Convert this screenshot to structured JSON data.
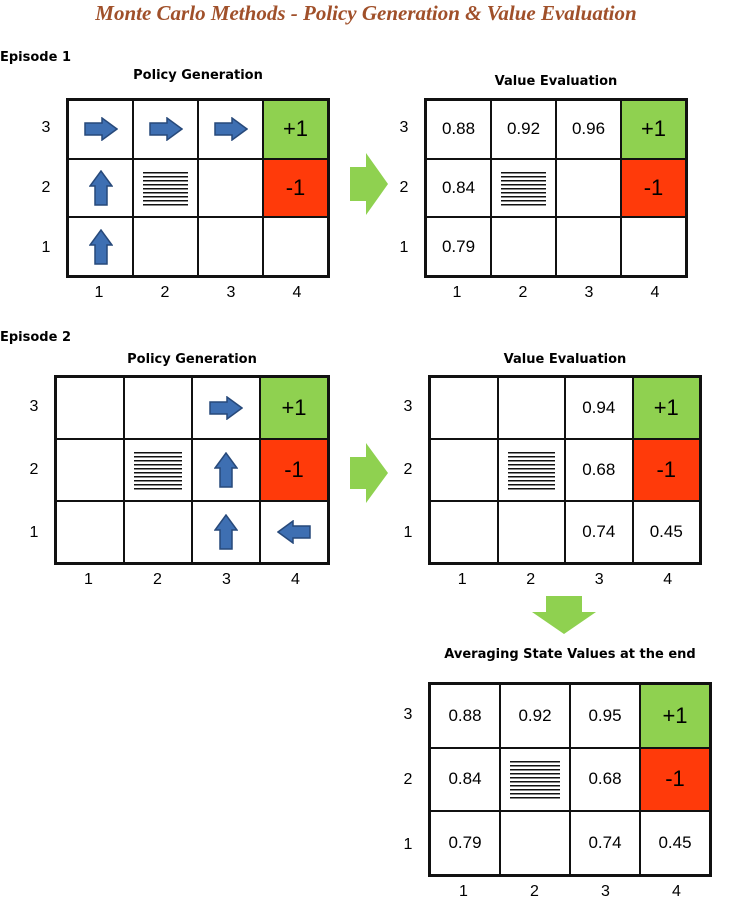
{
  "title": "Monte Carlo Methods - Policy Generation & Value Evaluation",
  "colors": {
    "title": "#a0502a",
    "goal": "#8fd150",
    "pit": "#ff3a0a",
    "arrow": "#3e6fb2",
    "flow": "#8fd150"
  },
  "episode1": {
    "label": "Episode 1",
    "policy_heading": "Policy Generation",
    "value_heading": "Value Evaluation",
    "policy_rows": [
      [
        "arrow-right",
        "arrow-right",
        "arrow-right",
        "+1"
      ],
      [
        "arrow-up",
        "wall",
        "",
        "-1"
      ],
      [
        "arrow-up",
        "",
        "",
        ""
      ]
    ],
    "value_rows": [
      [
        "0.88",
        "0.92",
        "0.96",
        "+1"
      ],
      [
        "0.84",
        "wall",
        "",
        "-1"
      ],
      [
        "0.79",
        "",
        "",
        ""
      ]
    ]
  },
  "episode2": {
    "label": "Episode 2",
    "policy_heading": "Policy Generation",
    "value_heading": "Value Evaluation",
    "policy_rows": [
      [
        "",
        "",
        "arrow-right",
        "+1"
      ],
      [
        "",
        "wall",
        "arrow-up",
        "-1"
      ],
      [
        "",
        "",
        "arrow-up",
        "arrow-left"
      ]
    ],
    "value_rows": [
      [
        "",
        "",
        "0.94",
        "+1"
      ],
      [
        "",
        "wall",
        "0.68",
        "-1"
      ],
      [
        "",
        "",
        "0.74",
        "0.45"
      ]
    ]
  },
  "average": {
    "heading": "Averaging State Values at the end",
    "value_rows": [
      [
        "0.88",
        "0.92",
        "0.95",
        "+1"
      ],
      [
        "0.84",
        "wall",
        "0.68",
        "-1"
      ],
      [
        "0.79",
        "",
        "0.74",
        "0.45"
      ]
    ]
  },
  "axes": {
    "row_labels": [
      "3",
      "2",
      "1"
    ],
    "col_labels": [
      "1",
      "2",
      "3",
      "4"
    ]
  }
}
